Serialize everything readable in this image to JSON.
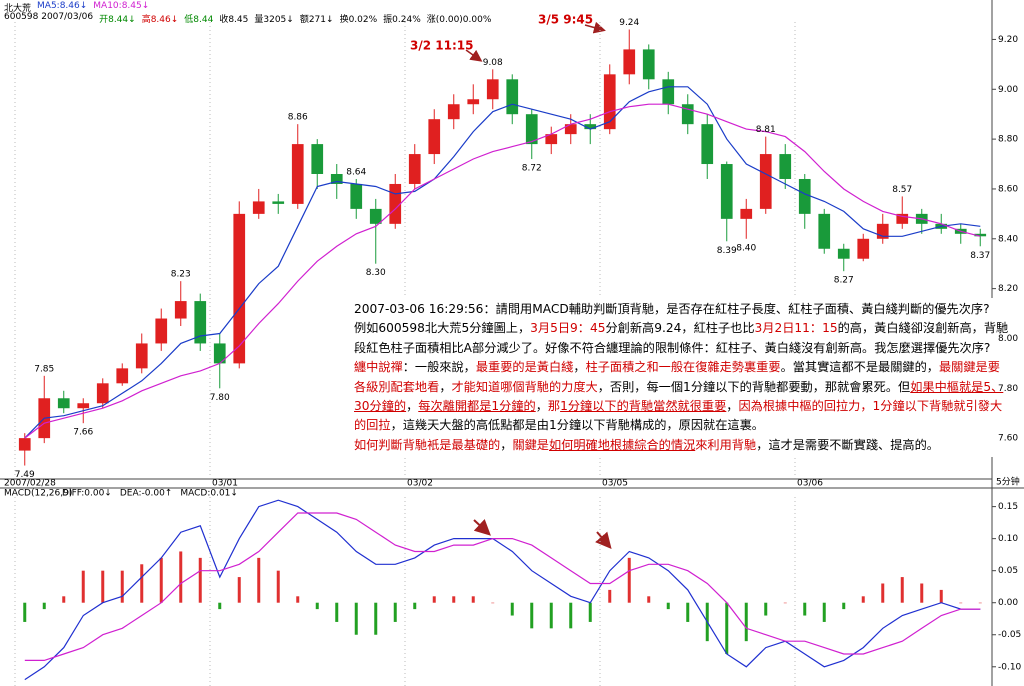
{
  "header": {
    "name": "北大荒",
    "fields": [
      {
        "text": "600598 2007/03/06",
        "color": "#000000"
      },
      {
        "text": "开8.44↓",
        "color": "#008800"
      },
      {
        "text": "高8.46↓",
        "color": "#d00000"
      },
      {
        "text": "低8.44",
        "color": "#008800"
      },
      {
        "text": "收8.45",
        "color": "#000000"
      },
      {
        "text": "量3205↓",
        "color": "#000000"
      },
      {
        "text": "额271↓",
        "color": "#000000"
      },
      {
        "text": "换0.02%",
        "color": "#000000"
      },
      {
        "text": "振0.24%",
        "color": "#000000"
      },
      {
        "text": "涨(0.00)0.00%",
        "color": "#000000"
      }
    ]
  },
  "chart_data": [
    {
      "type": "candlestick",
      "categories": [
        "2007/02/28",
        null,
        null,
        null,
        null,
        null,
        null,
        null,
        null,
        null,
        "03/01",
        null,
        null,
        null,
        null,
        null,
        null,
        null,
        null,
        null,
        "03/02",
        null,
        null,
        null,
        null,
        null,
        null,
        null,
        null,
        null,
        "03/05",
        null,
        null,
        null,
        null,
        null,
        null,
        null,
        null,
        null,
        "03/06",
        null,
        null,
        null,
        null,
        null,
        null,
        null,
        null,
        null
      ],
      "open": [
        7.55,
        7.6,
        7.76,
        7.72,
        7.74,
        7.82,
        7.88,
        7.98,
        8.08,
        8.15,
        7.98,
        7.9,
        8.5,
        8.55,
        8.54,
        8.78,
        8.66,
        8.62,
        8.52,
        8.46,
        8.62,
        8.74,
        8.88,
        8.94,
        8.96,
        9.04,
        8.9,
        8.78,
        8.82,
        8.86,
        8.84,
        9.06,
        9.16,
        9.04,
        8.94,
        8.86,
        8.7,
        8.48,
        8.52,
        8.74,
        8.64,
        8.5,
        8.36,
        8.32,
        8.4,
        8.46,
        8.5,
        8.46,
        8.44,
        8.42
      ],
      "high": [
        7.62,
        7.85,
        7.79,
        7.76,
        7.84,
        7.9,
        8.02,
        8.12,
        8.23,
        8.18,
        8.02,
        8.55,
        8.6,
        8.58,
        8.86,
        8.8,
        8.7,
        8.64,
        8.56,
        8.66,
        8.78,
        8.92,
        8.98,
        9.02,
        9.08,
        9.06,
        8.92,
        8.85,
        8.9,
        8.9,
        9.1,
        9.24,
        9.18,
        9.07,
        8.98,
        8.9,
        8.71,
        8.56,
        8.81,
        8.78,
        8.66,
        8.52,
        8.38,
        8.42,
        8.5,
        8.57,
        8.52,
        8.5,
        8.46,
        8.44
      ],
      "low": [
        7.49,
        7.58,
        7.7,
        7.66,
        7.72,
        7.81,
        7.86,
        7.95,
        8.05,
        7.95,
        7.8,
        7.88,
        8.48,
        8.5,
        8.52,
        8.6,
        8.56,
        8.48,
        8.3,
        8.44,
        8.6,
        8.7,
        8.84,
        8.9,
        8.92,
        8.86,
        8.72,
        8.74,
        8.78,
        8.78,
        8.82,
        9.02,
        9.0,
        8.9,
        8.82,
        8.64,
        8.39,
        8.4,
        8.5,
        8.6,
        8.44,
        8.34,
        8.27,
        8.31,
        8.38,
        8.44,
        8.42,
        8.42,
        8.38,
        8.37
      ],
      "close": [
        7.6,
        7.76,
        7.72,
        7.74,
        7.82,
        7.88,
        7.98,
        8.08,
        8.15,
        7.98,
        7.9,
        8.5,
        8.55,
        8.54,
        8.78,
        8.66,
        8.62,
        8.52,
        8.46,
        8.62,
        8.74,
        8.88,
        8.94,
        8.96,
        9.04,
        8.9,
        8.78,
        8.82,
        8.86,
        8.84,
        9.06,
        9.16,
        9.04,
        8.94,
        8.86,
        8.7,
        8.48,
        8.52,
        8.74,
        8.64,
        8.5,
        8.36,
        8.32,
        8.4,
        8.46,
        8.5,
        8.46,
        8.44,
        8.42,
        8.41
      ],
      "up_color": "#e02020",
      "down_color": "#199a3a",
      "series": [
        {
          "name": "MA5:8.46↓",
          "color": "#1a3cc8",
          "values": [
            7.6,
            7.68,
            7.69,
            7.71,
            7.73,
            7.78,
            7.83,
            7.9,
            7.98,
            8.01,
            8.02,
            8.12,
            8.22,
            8.29,
            8.45,
            8.61,
            8.63,
            8.62,
            8.61,
            8.58,
            8.59,
            8.64,
            8.73,
            8.83,
            8.91,
            8.94,
            8.92,
            8.9,
            8.88,
            8.84,
            8.87,
            8.95,
            8.99,
            9.01,
            9.01,
            8.94,
            8.8,
            8.7,
            8.66,
            8.62,
            8.58,
            8.55,
            8.51,
            8.44,
            8.41,
            8.41,
            8.43,
            8.45,
            8.46,
            8.45
          ]
        },
        {
          "name": "MA10:8.45↓",
          "color": "#d020d0",
          "values": [
            7.6,
            7.66,
            7.68,
            7.7,
            7.72,
            7.75,
            7.79,
            7.82,
            7.85,
            7.87,
            7.9,
            7.97,
            8.06,
            8.14,
            8.23,
            8.31,
            8.37,
            8.42,
            8.45,
            8.52,
            8.6,
            8.64,
            8.68,
            8.72,
            8.75,
            8.77,
            8.79,
            8.82,
            8.86,
            8.88,
            8.91,
            8.93,
            8.94,
            8.94,
            8.92,
            8.9,
            8.87,
            8.84,
            8.83,
            8.81,
            8.75,
            8.67,
            8.6,
            8.55,
            8.51,
            8.49,
            8.48,
            8.46,
            8.43,
            8.41
          ]
        }
      ],
      "ylim": [
        7.44,
        9.27
      ],
      "yticks": [
        {
          "value": 7.6,
          "label": "7.60"
        },
        {
          "value": 7.8,
          "label": "7.80"
        },
        {
          "value": 8,
          "label": "8.00"
        },
        {
          "value": 8.2,
          "label": "8.20"
        },
        {
          "value": 8.4,
          "label": "8.40"
        },
        {
          "value": 8.6,
          "label": "8.60"
        },
        {
          "value": 8.8,
          "label": "8.80"
        },
        {
          "value": 9,
          "label": "9.00"
        },
        {
          "value": 9.2,
          "label": "9.20"
        }
      ],
      "extreme_labels": [
        {
          "value": 7.49,
          "label": "7.49"
        },
        {
          "value": 7.85,
          "label": "7.85"
        },
        {
          "value": 7.66,
          "label": "7.66"
        },
        {
          "value": 8.23,
          "label": "8.23"
        },
        {
          "value": 7.8,
          "label": "7.80"
        },
        {
          "value": 8.86,
          "label": "8.86"
        },
        {
          "value": 8.3,
          "label": "8.30"
        },
        {
          "value": 9.08,
          "label": "9.08"
        },
        {
          "value": 8.72,
          "label": "8.72"
        },
        {
          "value": 9.24,
          "label": "9.24"
        },
        {
          "value": 8.64,
          "label": "8.64"
        },
        {
          "value": 8.39,
          "label": "8.39"
        },
        {
          "value": 8.4,
          "label": "8.40"
        },
        {
          "value": 8.81,
          "label": "8.81"
        },
        {
          "value": 8.27,
          "label": "8.27"
        },
        {
          "value": 8.57,
          "label": "8.57"
        },
        {
          "value": 8.37,
          "label": "8.37"
        }
      ],
      "annotations": [
        "3/5 9:45",
        "3/2 11:15"
      ],
      "period_label": "5分钟"
    },
    {
      "type": "macd",
      "title": "MACD(12,26,9)",
      "series": [
        {
          "name": "DIFF:0.00↓",
          "color": "#2030d0",
          "values": [
            -0.12,
            -0.1,
            -0.07,
            -0.02,
            0.0,
            0.01,
            0.04,
            0.07,
            0.11,
            0.12,
            0.04,
            0.1,
            0.15,
            0.16,
            0.15,
            0.13,
            0.11,
            0.08,
            0.06,
            0.06,
            0.07,
            0.09,
            0.1,
            0.1,
            0.1,
            0.08,
            0.05,
            0.03,
            0.01,
            0.0,
            0.05,
            0.08,
            0.07,
            0.05,
            0.02,
            -0.03,
            -0.08,
            -0.1,
            -0.07,
            -0.06,
            -0.08,
            -0.1,
            -0.09,
            -0.07,
            -0.04,
            -0.02,
            -0.01,
            0.0,
            -0.01,
            -0.01
          ]
        },
        {
          "name": "DEA:-0.00↑",
          "color": "#d020d0",
          "values": [
            -0.09,
            -0.09,
            -0.08,
            -0.07,
            -0.05,
            -0.04,
            -0.02,
            0.0,
            0.03,
            0.05,
            0.05,
            0.06,
            0.08,
            0.11,
            0.14,
            0.14,
            0.14,
            0.13,
            0.11,
            0.09,
            0.08,
            0.08,
            0.09,
            0.09,
            0.1,
            0.1,
            0.09,
            0.07,
            0.05,
            0.03,
            0.03,
            0.05,
            0.06,
            0.06,
            0.05,
            0.03,
            0.0,
            -0.04,
            -0.05,
            -0.06,
            -0.06,
            -0.07,
            -0.08,
            -0.08,
            -0.07,
            -0.06,
            -0.04,
            -0.02,
            -0.01,
            -0.01
          ]
        },
        {
          "name": "MACD:0.01↓",
          "color": "#000000",
          "up_color": "#e03030",
          "down_color": "#22a022",
          "values": [
            -0.03,
            -0.01,
            0.01,
            0.05,
            0.05,
            0.05,
            0.06,
            0.07,
            0.08,
            0.07,
            -0.01,
            0.04,
            0.07,
            0.05,
            0.01,
            -0.01,
            -0.03,
            -0.05,
            -0.05,
            -0.03,
            -0.01,
            0.01,
            0.01,
            0.01,
            0.0,
            -0.02,
            -0.04,
            -0.04,
            -0.04,
            -0.03,
            0.02,
            0.07,
            0.01,
            -0.01,
            -0.03,
            -0.06,
            -0.08,
            -0.06,
            -0.02,
            0.0,
            -0.02,
            -0.03,
            -0.01,
            0.01,
            0.03,
            0.04,
            0.03,
            0.02,
            0.0,
            0.0
          ]
        }
      ],
      "ylim": [
        -0.13,
        0.165
      ],
      "yticks": [
        {
          "value": -0.1,
          "label": "-0.10"
        },
        -0.05,
        {
          "value": 0,
          "label": "0.00"
        },
        0.05,
        {
          "value": 0.1,
          "label": "0.10"
        },
        0.15
      ]
    }
  ],
  "text_box": {
    "lines": [
      [
        {
          "text": "2007-03-06 16:29:56：請問用MACD輔助判斷頂背馳，是否存在紅柱子長度、紅柱子面積、黃白綫判斷的優先次序?"
        }
      ],
      [
        {
          "text": "例如600598北大荒5分鐘圖上，"
        },
        {
          "text": "3月5日9：45",
          "color": "#d00000"
        },
        {
          "text": "分創新高9.24，紅柱子也比"
        },
        {
          "text": "3月2日11：15",
          "color": "#d00000"
        },
        {
          "text": "的高，黃白綫卻沒創新高，背馳"
        }
      ],
      [
        {
          "text": "段紅色柱子面積相比A部分減少了。好像不符合纏理論的限制條件：紅柱子、黃白綫沒有創新高。我怎麼選擇優先次序?"
        }
      ],
      [
        {
          "text": "纏中說禪",
          "color": "#d00000"
        },
        {
          "text": "：一般來說，"
        },
        {
          "text": "最重要的是黃白綫",
          "color": "#d00000"
        },
        {
          "text": "，"
        },
        {
          "text": "柱子面積之和一般在復雜走勢裏重要",
          "color": "#d00000"
        },
        {
          "text": "。當其實這都不是最關鍵的，"
        },
        {
          "text": "最關鍵是要",
          "color": "#d00000"
        }
      ],
      [
        {
          "text": "各級別配套地看",
          "color": "#d00000"
        },
        {
          "text": "，"
        },
        {
          "text": "才能知道哪個背馳的力度大",
          "color": "#d00000"
        },
        {
          "text": "，否則，每一個1分鐘以下的背馳都要動，那就會累死。但"
        },
        {
          "text": "如果中樞就是5、",
          "color": "#d00000",
          "underline": true
        }
      ],
      [
        {
          "text": "30分鐘的",
          "color": "#d00000",
          "underline": true
        },
        {
          "text": "，"
        },
        {
          "text": "每次離開都是1分鐘的",
          "color": "#d00000",
          "underline": true
        },
        {
          "text": "，"
        },
        {
          "text": "那",
          "color": "#d00000"
        },
        {
          "text": "1分鐘以下的背馳當然就很重要",
          "color": "#d00000",
          "underline": true
        },
        {
          "text": "，"
        },
        {
          "text": "因為根據中樞的回拉力，1分鐘以下背馳就引發大",
          "color": "#d00000"
        }
      ],
      [
        {
          "text": "的回拉",
          "color": "#d00000"
        },
        {
          "text": "，這幾天大盤的高低點都是由1分鐘以下背馳構成的，原因就在這裏。"
        }
      ],
      [
        {
          "text": "如何判斷背馳衹是最基礎的",
          "color": "#d00000"
        },
        {
          "text": "，"
        },
        {
          "text": "關鍵是",
          "color": "#d00000"
        },
        {
          "text": "如何明確地根據綜合的情況",
          "color": "#d00000",
          "underline": true
        },
        {
          "text": "來利用背馳",
          "color": "#d00000"
        },
        {
          "text": "，這才是需要不斷實踐、提高的。"
        }
      ]
    ]
  }
}
